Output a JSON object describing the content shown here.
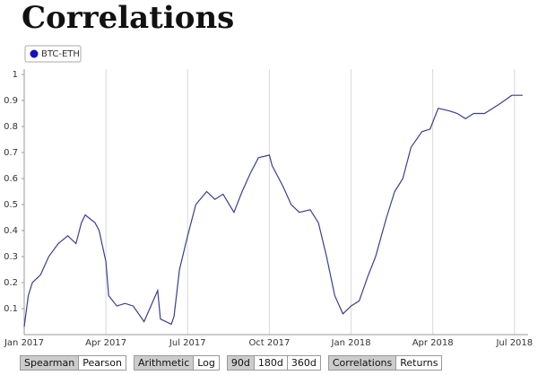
{
  "title": "Correlations",
  "chart_data": {
    "type": "line",
    "series": [
      {
        "name": "BTC-ETH",
        "color": "#3a3f8f",
        "x": [
          0,
          0.15,
          0.3,
          0.6,
          0.9,
          1.25,
          1.6,
          1.9,
          2.1,
          2.24,
          2.6,
          2.75,
          3.0,
          3.1,
          3.4,
          3.7,
          4.0,
          4.4,
          4.9,
          5.0,
          5.4,
          5.5,
          5.7,
          6.0,
          6.3,
          6.7,
          7.0,
          7.3,
          7.7,
          8.0,
          8.3,
          8.6,
          9.0,
          9.1,
          9.5,
          9.8,
          10.1,
          10.5,
          10.8,
          11.1,
          11.4,
          11.7,
          12.0,
          12.3,
          12.6,
          12.9,
          13.3,
          13.6,
          13.9,
          14.2,
          14.6,
          14.9,
          15.2,
          15.6,
          15.9,
          16.2,
          16.5,
          16.9,
          17.2,
          17.5,
          17.9,
          18.3
        ],
        "values": [
          0.03,
          0.15,
          0.2,
          0.23,
          0.3,
          0.35,
          0.38,
          0.35,
          0.43,
          0.46,
          0.43,
          0.4,
          0.28,
          0.15,
          0.11,
          0.12,
          0.11,
          0.05,
          0.17,
          0.06,
          0.04,
          0.07,
          0.25,
          0.38,
          0.5,
          0.55,
          0.52,
          0.54,
          0.47,
          0.55,
          0.62,
          0.68,
          0.69,
          0.65,
          0.57,
          0.5,
          0.47,
          0.48,
          0.43,
          0.3,
          0.15,
          0.08,
          0.11,
          0.13,
          0.22,
          0.3,
          0.45,
          0.55,
          0.6,
          0.72,
          0.78,
          0.79,
          0.87,
          0.86,
          0.85,
          0.83,
          0.85,
          0.85,
          0.87,
          0.89,
          0.92,
          0.92
        ]
      }
    ],
    "xlim": [
      0,
      18.5
    ],
    "xticks": [
      {
        "value": 0,
        "label": "Jan 2017"
      },
      {
        "value": 3,
        "label": "Apr 2017"
      },
      {
        "value": 6,
        "label": "Jul 2017"
      },
      {
        "value": 9,
        "label": "Oct 2017"
      },
      {
        "value": 12,
        "label": "Jan 2018"
      },
      {
        "value": 15,
        "label": "Apr 2018"
      },
      {
        "value": 18,
        "label": "Jul 2018"
      }
    ],
    "ylim": [
      0,
      1
    ],
    "yticks": [
      0.1,
      0.2,
      0.3,
      0.4,
      0.5,
      0.6,
      0.7,
      0.8,
      0.9,
      1
    ],
    "grid": "x"
  },
  "controls": [
    {
      "buttons": [
        "Spearman",
        "Pearson"
      ],
      "selected": 0
    },
    {
      "buttons": [
        "Arithmetic",
        "Log"
      ],
      "selected": 0
    },
    {
      "buttons": [
        "90d",
        "180d",
        "360d"
      ],
      "selected": 0
    },
    {
      "buttons": [
        "Correlations",
        "Returns"
      ],
      "selected": 0
    }
  ]
}
